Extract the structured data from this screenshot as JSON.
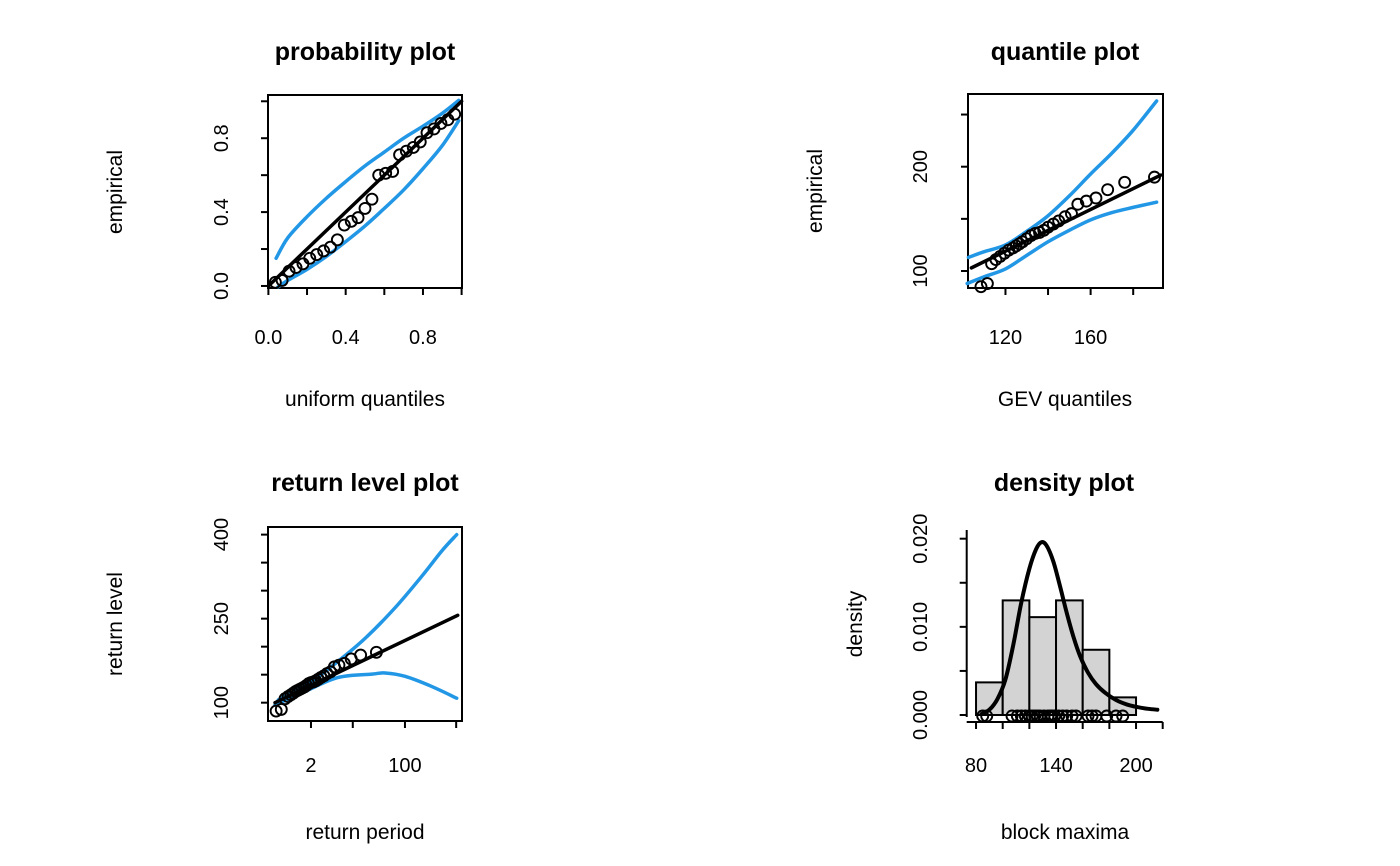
{
  "figure": {
    "kind": "R GEV model diagnostic plots (2x2 grid)",
    "background": "#FFFFFF"
  },
  "colors": {
    "band_blue": "#2297E6",
    "line_black": "#000000",
    "hist_fill": "#D3D3D3",
    "hist_border": "#000000",
    "point_stroke": "#000000"
  },
  "chart_data": [
    {
      "id": "probability",
      "type": "scatter",
      "title": "probability plot",
      "xlabel": "uniform quantiles",
      "ylabel": "empirical",
      "xlim": [
        -0.002,
        1.002
      ],
      "ylim": [
        -0.011,
        1.034
      ],
      "grid": false,
      "x_tick_pos": [
        0,
        0.2,
        0.4,
        0.6,
        0.8,
        1.0
      ],
      "x_tick_labels": [
        "0.0",
        "",
        "0.4",
        "",
        "0.8",
        ""
      ],
      "y_tick_pos": [
        0,
        0.2,
        0.4,
        0.6,
        0.8,
        1.0
      ],
      "y_tick_labels": [
        "0.0",
        "",
        "0.4",
        "",
        "0.8",
        ""
      ],
      "points": {
        "x": [
          0.036,
          0.071,
          0.107,
          0.143,
          0.179,
          0.214,
          0.25,
          0.286,
          0.321,
          0.357,
          0.393,
          0.429,
          0.464,
          0.5,
          0.536,
          0.571,
          0.607,
          0.643,
          0.679,
          0.714,
          0.75,
          0.786,
          0.821,
          0.857,
          0.893,
          0.929,
          0.964
        ],
        "y": [
          0.02,
          0.03,
          0.08,
          0.1,
          0.12,
          0.15,
          0.17,
          0.19,
          0.21,
          0.25,
          0.33,
          0.35,
          0.37,
          0.42,
          0.47,
          0.6,
          0.61,
          0.62,
          0.71,
          0.73,
          0.75,
          0.78,
          0.83,
          0.85,
          0.88,
          0.9,
          0.93
        ]
      },
      "fit_line": [
        [
          0,
          0
        ],
        [
          1.0,
          1.0
        ]
      ],
      "upper_band": [
        [
          0.04,
          0.15
        ],
        [
          0.1,
          0.26
        ],
        [
          0.2,
          0.375
        ],
        [
          0.3,
          0.475
        ],
        [
          0.4,
          0.565
        ],
        [
          0.5,
          0.65
        ],
        [
          0.6,
          0.725
        ],
        [
          0.7,
          0.8
        ],
        [
          0.8,
          0.865
        ],
        [
          0.9,
          0.935
        ],
        [
          0.985,
          1.005
        ]
      ],
      "lower_band": [
        [
          0.05,
          -0.005
        ],
        [
          0.1,
          0.03
        ],
        [
          0.2,
          0.09
        ],
        [
          0.3,
          0.16
        ],
        [
          0.4,
          0.24
        ],
        [
          0.5,
          0.325
        ],
        [
          0.6,
          0.42
        ],
        [
          0.7,
          0.52
        ],
        [
          0.8,
          0.635
        ],
        [
          0.9,
          0.76
        ],
        [
          0.985,
          0.895
        ]
      ]
    },
    {
      "id": "quantile",
      "type": "scatter",
      "title": "quantile plot",
      "xlabel": "GEV quantiles",
      "ylabel": "empirical",
      "xlim": [
        102.4,
        194.0
      ],
      "ylim": [
        83.7,
        269.7
      ],
      "grid": false,
      "x_tick_pos": [
        120,
        140,
        160,
        180
      ],
      "x_tick_labels": [
        "120",
        "",
        "160",
        ""
      ],
      "y_tick_pos": [
        100,
        150,
        200,
        250
      ],
      "y_tick_labels": [
        "100",
        "",
        "200",
        ""
      ],
      "points": {
        "x": [
          108.5,
          111.5,
          113.5,
          115.5,
          117.5,
          119.5,
          121.5,
          123.5,
          125,
          126.5,
          128,
          130,
          132,
          134,
          136,
          138,
          140,
          142.5,
          145,
          148,
          151,
          154,
          158,
          162.5,
          168,
          176,
          190
        ],
        "y": [
          85,
          88,
          107,
          111,
          114,
          117,
          120,
          122,
          124,
          126,
          128,
          131,
          134,
          136,
          137,
          139,
          142,
          145,
          148,
          152,
          155,
          164,
          167,
          170,
          178,
          185,
          190
        ]
      },
      "fit_line": [
        [
          104,
          103
        ],
        [
          193,
          192
        ]
      ],
      "upper_band": [
        [
          102.6,
          113
        ],
        [
          110,
          118.5
        ],
        [
          120,
          125
        ],
        [
          130,
          138
        ],
        [
          140,
          153
        ],
        [
          150,
          172
        ],
        [
          160,
          193
        ],
        [
          170,
          213
        ],
        [
          180,
          235
        ],
        [
          191,
          263
        ]
      ],
      "lower_band": [
        [
          102,
          88
        ],
        [
          110,
          94.5
        ],
        [
          120,
          102
        ],
        [
          130,
          115
        ],
        [
          140,
          128
        ],
        [
          150,
          139
        ],
        [
          160,
          149
        ],
        [
          170,
          156
        ],
        [
          180,
          161
        ],
        [
          191,
          166
        ]
      ]
    },
    {
      "id": "return_level",
      "type": "scatter",
      "title": "return level plot",
      "xlabel": "return period",
      "ylabel": "return level",
      "x_scale": "log(-1/log(1-1/T)), base 10",
      "xlim": [
        -0.682,
        3.114
      ],
      "ylim": [
        67.3,
        413.6
      ],
      "grid": false,
      "x_tick_pos": [
        0.159,
        0.977,
        1.998,
        3.0
      ],
      "x_tick_labels": [
        "2",
        "",
        "100",
        ""
      ],
      "x_tick_periods": [
        2,
        10,
        100,
        1000
      ],
      "y_tick_pos": [
        100,
        150,
        200,
        250,
        300,
        350,
        400
      ],
      "y_tick_labels": [
        "100",
        "",
        "",
        "250",
        "",
        "",
        "400"
      ],
      "return_periods": [
        1.04,
        1.08,
        1.12,
        1.17,
        1.22,
        1.27,
        1.33,
        1.4,
        1.47,
        1.56,
        1.65,
        1.75,
        1.87,
        2,
        2.15,
        2.33,
        2.55,
        2.8,
        3.11,
        3.5,
        4,
        4.67,
        5.6,
        7,
        9.33,
        14,
        28
      ],
      "points": {
        "x": [
          -0.523,
          -0.422,
          -0.349,
          -0.289,
          -0.236,
          -0.188,
          -0.142,
          -0.098,
          -0.055,
          -0.013,
          0.03,
          0.072,
          0.115,
          0.159,
          0.205,
          0.252,
          0.302,
          0.355,
          0.412,
          0.473,
          0.541,
          0.618,
          0.706,
          0.812,
          0.946,
          1.13,
          1.439
        ],
        "y": [
          85,
          88,
          107,
          111,
          114,
          117,
          120,
          122,
          124,
          126,
          128,
          131,
          134,
          136,
          137,
          139,
          142,
          145,
          148,
          152,
          155,
          164,
          167,
          170,
          178,
          185,
          190
        ]
      },
      "fit_line": [
        [
          -0.545,
          100
        ],
        [
          3.03,
          256
        ]
      ],
      "upper_band": [
        [
          -0.48,
          105
        ],
        [
          0.17,
          138
        ],
        [
          0.69,
          174
        ],
        [
          1.22,
          215
        ],
        [
          1.8,
          269
        ],
        [
          2.33,
          326
        ],
        [
          2.72,
          371
        ],
        [
          3.01,
          400
        ]
      ],
      "lower_band": [
        [
          -0.545,
          96
        ],
        [
          0.04,
          120
        ],
        [
          0.69,
          145
        ],
        [
          1.35,
          151
        ],
        [
          1.61,
          153
        ],
        [
          2.0,
          147
        ],
        [
          2.52,
          129
        ],
        [
          3.01,
          108
        ]
      ]
    },
    {
      "id": "density",
      "type": "histogram+line",
      "title": "density plot",
      "xlabel": "block maxima",
      "ylabel": "density",
      "xlim": [
        73,
        220
      ],
      "ylim": [
        0,
        0.0206
      ],
      "grid": false,
      "x_tick_pos": [
        80,
        100,
        120,
        140,
        160,
        180,
        200,
        220
      ],
      "x_tick_labels": [
        "80",
        "",
        "",
        "140",
        "",
        "",
        "200",
        ""
      ],
      "y_tick_pos": [
        0,
        0.005,
        0.01,
        0.015,
        0.02
      ],
      "y_tick_labels": [
        "0.000",
        "",
        "0.010",
        "",
        "0.020"
      ],
      "bins": {
        "breaks": [
          80,
          100,
          120,
          140,
          160,
          180,
          200
        ],
        "density": [
          0.0037,
          0.013,
          0.0111,
          0.013,
          0.0074,
          0.002
        ]
      },
      "curve": [
        [
          84,
          0.0001
        ],
        [
          90,
          0.0006
        ],
        [
          96,
          0.0018
        ],
        [
          102,
          0.004
        ],
        [
          108,
          0.008
        ],
        [
          114,
          0.0128
        ],
        [
          120,
          0.0166
        ],
        [
          125,
          0.0188
        ],
        [
          129,
          0.0196
        ],
        [
          133,
          0.0192
        ],
        [
          138,
          0.0174
        ],
        [
          143,
          0.0146
        ],
        [
          148,
          0.0116
        ],
        [
          153,
          0.0089
        ],
        [
          158,
          0.0067
        ],
        [
          164,
          0.0048
        ],
        [
          170,
          0.0035
        ],
        [
          177,
          0.0025
        ],
        [
          185,
          0.0017
        ],
        [
          193,
          0.0012
        ],
        [
          201,
          0.0009
        ],
        [
          209,
          0.0007
        ],
        [
          216,
          0.0006
        ]
      ],
      "rug": [
        85,
        88,
        107,
        111,
        114,
        117,
        120,
        122,
        124,
        126,
        128,
        131,
        134,
        136,
        137,
        139,
        142,
        145,
        148,
        152,
        155,
        164,
        167,
        170,
        178,
        185,
        190
      ]
    }
  ]
}
